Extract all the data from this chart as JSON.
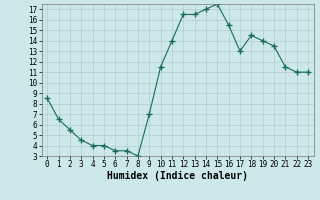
{
  "x": [
    0,
    1,
    2,
    3,
    4,
    5,
    6,
    7,
    8,
    9,
    10,
    11,
    12,
    13,
    14,
    15,
    16,
    17,
    18,
    19,
    20,
    21,
    22,
    23
  ],
  "y": [
    8.5,
    6.5,
    5.5,
    4.5,
    4.0,
    4.0,
    3.5,
    3.5,
    3.0,
    7.0,
    11.5,
    14.0,
    16.5,
    16.5,
    17.0,
    17.5,
    15.5,
    13.0,
    14.5,
    14.0,
    13.5,
    11.5,
    11.0,
    11.0
  ],
  "line_color": "#1a6b5a",
  "marker": "+",
  "marker_size": 4,
  "bg_color": "#cce8e8",
  "grid_color": "#b0cfcf",
  "xlabel": "Humidex (Indice chaleur)",
  "xlim": [
    -0.5,
    23.5
  ],
  "ylim": [
    3,
    17.5
  ],
  "yticks": [
    3,
    4,
    5,
    6,
    7,
    8,
    9,
    10,
    11,
    12,
    13,
    14,
    15,
    16,
    17
  ],
  "xticks": [
    0,
    1,
    2,
    3,
    4,
    5,
    6,
    7,
    8,
    9,
    10,
    11,
    12,
    13,
    14,
    15,
    16,
    17,
    18,
    19,
    20,
    21,
    22,
    23
  ],
  "label_fontsize": 6.5,
  "tick_fontsize": 5.5,
  "xlabel_fontsize": 7.0
}
